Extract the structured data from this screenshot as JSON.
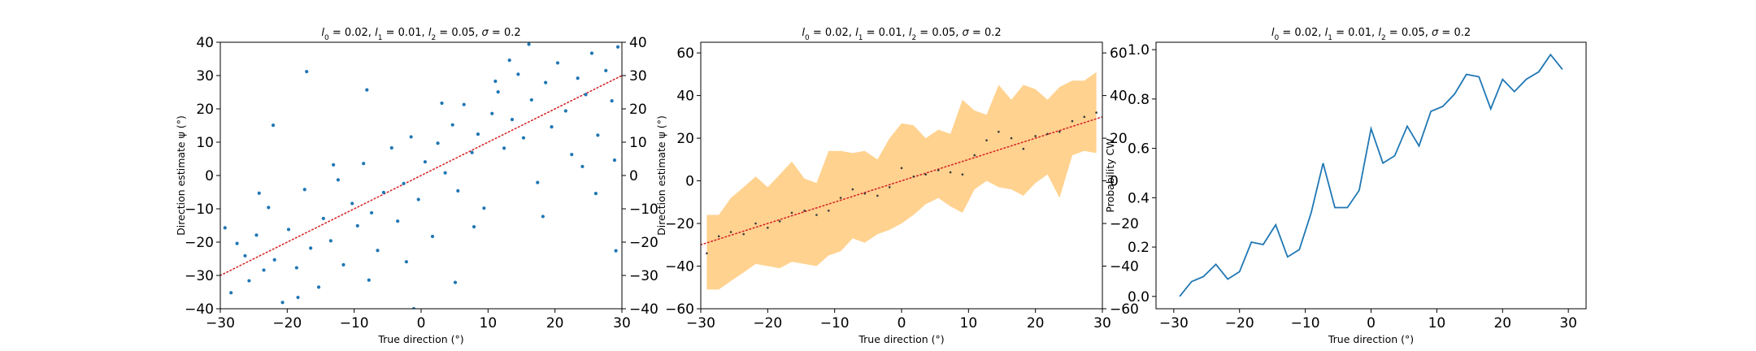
{
  "colors": {
    "scatter": "#1f77b4",
    "identity": "#d62728",
    "band": "#ffd28f",
    "mean_points": "#3a3a3a",
    "line": "#1f77b4"
  },
  "chart_data": [
    {
      "type": "scatter",
      "title": "l_0 = 0.02, l_1 = 0.01, l_2 = 0.05, σ = 0.2",
      "title_parts": {
        "l0": "0.02",
        "l1": "0.01",
        "l2": "0.05",
        "sigma": "0.2"
      },
      "xlabel": "True direction (°)",
      "ylabel": "Direction estimate ψ (°)",
      "xlim": [
        -30,
        30
      ],
      "ylim": [
        -40,
        40
      ],
      "x_ticks": [
        "−30",
        "−20",
        "−10",
        "0",
        "10",
        "20",
        "30"
      ],
      "y_ticks": [
        "−40",
        "−30",
        "−20",
        "−10",
        "0",
        "10",
        "20",
        "30",
        "40"
      ],
      "y_ticks_right": [
        "−40",
        "−30",
        "−20",
        "−10",
        "0",
        "10",
        "20",
        "30",
        "40"
      ],
      "identity_line": {
        "x": [
          -30,
          30
        ],
        "y": [
          -30,
          30
        ],
        "style": "dotted"
      },
      "points": [
        [
          -28.4,
          -35.2
        ],
        [
          -27.5,
          -20.4
        ],
        [
          -26.3,
          -24.1
        ],
        [
          -25.7,
          -31.6
        ],
        [
          -24.6,
          -17.9
        ],
        [
          -23.5,
          -28.4
        ],
        [
          -22.8,
          -9.6
        ],
        [
          -21.9,
          -25.3
        ],
        [
          -20.7,
          -38.1
        ],
        [
          -19.8,
          -16.2
        ],
        [
          -18.6,
          -27.7
        ],
        [
          -17.4,
          -4.2
        ],
        [
          -16.5,
          -21.8
        ],
        [
          -15.3,
          -33.5
        ],
        [
          -14.6,
          -12.9
        ],
        [
          -13.5,
          -19.6
        ],
        [
          -12.4,
          -1.3
        ],
        [
          -11.6,
          -26.8
        ],
        [
          -10.3,
          -8.4
        ],
        [
          -9.5,
          -15.1
        ],
        [
          -8.6,
          3.6
        ],
        [
          -7.4,
          -11.2
        ],
        [
          -6.5,
          -22.5
        ],
        [
          -5.6,
          -5.1
        ],
        [
          -4.4,
          8.3
        ],
        [
          -3.5,
          -13.7
        ],
        [
          -2.6,
          -2.4
        ],
        [
          -1.5,
          11.6
        ],
        [
          -0.4,
          -7.2
        ],
        [
          0.6,
          4.1
        ],
        [
          1.7,
          -18.3
        ],
        [
          2.5,
          9.7
        ],
        [
          3.6,
          0.8
        ],
        [
          4.7,
          15.2
        ],
        [
          5.5,
          -4.6
        ],
        [
          6.4,
          21.3
        ],
        [
          7.6,
          6.9
        ],
        [
          8.5,
          12.4
        ],
        [
          9.4,
          -9.8
        ],
        [
          10.6,
          18.6
        ],
        [
          11.5,
          25.1
        ],
        [
          12.4,
          8.2
        ],
        [
          13.6,
          16.8
        ],
        [
          14.5,
          30.4
        ],
        [
          15.3,
          11.3
        ],
        [
          16.5,
          22.7
        ],
        [
          17.4,
          -2.1
        ],
        [
          18.6,
          27.9
        ],
        [
          19.5,
          14.6
        ],
        [
          20.4,
          33.8
        ],
        [
          21.6,
          19.4
        ],
        [
          22.5,
          6.3
        ],
        [
          23.4,
          29.2
        ],
        [
          24.6,
          24.3
        ],
        [
          25.5,
          36.7
        ],
        [
          26.4,
          12.1
        ],
        [
          27.6,
          31.5
        ],
        [
          28.5,
          22.4
        ],
        [
          29.4,
          38.6
        ],
        [
          -29.3,
          -15.7
        ],
        [
          -24.2,
          -5.3
        ],
        [
          -18.4,
          -36.6
        ],
        [
          -13.1,
          3.2
        ],
        [
          -7.8,
          -31.4
        ],
        [
          -2.2,
          -25.9
        ],
        [
          3.1,
          21.7
        ],
        [
          7.9,
          -15.4
        ],
        [
          13.2,
          34.6
        ],
        [
          18.2,
          -12.3
        ],
        [
          24.1,
          2.7
        ],
        [
          29.1,
          -22.6
        ],
        [
          -22.1,
          15.1
        ],
        [
          -17.1,
          31.2
        ],
        [
          -8.1,
          25.7
        ],
        [
          -1.1,
          -40.0
        ],
        [
          5.1,
          -32.1
        ],
        [
          11.1,
          28.3
        ],
        [
          16.1,
          39.4
        ],
        [
          26.1,
          -5.4
        ],
        [
          28.9,
          4.6
        ]
      ]
    },
    {
      "type": "line",
      "title": "l_0 = 0.02, l_1 = 0.01, l_2 = 0.05, σ = 0.2",
      "title_parts": {
        "l0": "0.02",
        "l1": "0.01",
        "l2": "0.05",
        "sigma": "0.2"
      },
      "xlabel": "True direction (°)",
      "ylabel": "Direction estimate ψ (°)",
      "xlim": [
        -30,
        30
      ],
      "ylim": [
        -60,
        65
      ],
      "x_ticks": [
        "−30",
        "−20",
        "−10",
        "0",
        "10",
        "20",
        "30"
      ],
      "y_ticks": [
        "−60",
        "−40",
        "−20",
        "0",
        "20",
        "40",
        "60"
      ],
      "y_ticks_right": [
        "−60",
        "−40",
        "−20",
        "0",
        "20",
        "40",
        "60"
      ],
      "identity_line": {
        "x": [
          -30,
          30
        ],
        "y": [
          -30,
          30
        ],
        "style": "dotted"
      },
      "x": [
        -29.1,
        -27.3,
        -25.5,
        -23.6,
        -21.8,
        -20.0,
        -18.2,
        -16.4,
        -14.5,
        -12.7,
        -10.9,
        -9.1,
        -7.3,
        -5.5,
        -3.6,
        -1.8,
        0.0,
        1.8,
        3.6,
        5.5,
        7.3,
        9.1,
        10.9,
        12.7,
        14.5,
        16.4,
        18.2,
        20.0,
        21.8,
        23.6,
        25.5,
        27.3,
        29.1
      ],
      "mean": [
        -34,
        -26,
        -24,
        -25,
        -20,
        -22,
        -19,
        -15,
        -14,
        -16,
        -14,
        -8,
        -4,
        -6,
        -7,
        -3,
        6,
        2,
        3,
        5,
        4,
        3,
        12,
        19,
        23,
        20,
        15,
        21,
        22,
        23,
        28,
        30,
        32
      ],
      "upper": [
        -16,
        -16,
        -8,
        -3,
        2,
        -3,
        3,
        9,
        1,
        -1,
        14,
        14,
        13,
        14,
        10,
        20,
        27,
        26,
        20,
        24,
        22,
        38,
        33,
        31,
        45,
        38,
        45,
        43,
        38,
        44,
        47,
        47,
        51
      ],
      "lower": [
        -51,
        -51,
        -47,
        -43,
        -39,
        -40,
        -41,
        -38,
        -39,
        -40,
        -35,
        -33,
        -27,
        -29,
        -25,
        -23,
        -20,
        -16,
        -11,
        -8,
        -12,
        -15,
        -4,
        0,
        -3,
        -4,
        -7,
        -1,
        3,
        -8,
        12,
        14,
        13
      ]
    },
    {
      "type": "line",
      "title": "l_0 = 0.02, l_1 = 0.01, l_2 = 0.05, σ = 0.2",
      "title_parts": {
        "l0": "0.02",
        "l1": "0.01",
        "l2": "0.05",
        "sigma": "0.2"
      },
      "xlabel": "True direction (°)",
      "ylabel": "Probability CW",
      "xlim": [
        -32.7,
        32.7
      ],
      "ylim": [
        -0.05,
        1.03
      ],
      "x_ticks": [
        "−30",
        "−20",
        "−10",
        "0",
        "10",
        "20",
        "30"
      ],
      "y_ticks": [
        "0.0",
        "0.2",
        "0.4",
        "0.6",
        "0.8",
        "1.0"
      ],
      "x": [
        -29.1,
        -27.3,
        -25.5,
        -23.6,
        -21.8,
        -20.0,
        -18.2,
        -16.4,
        -14.5,
        -12.7,
        -10.9,
        -9.1,
        -7.3,
        -5.5,
        -3.6,
        -1.8,
        0.0,
        1.8,
        3.6,
        5.5,
        7.3,
        9.1,
        10.9,
        12.7,
        14.5,
        16.4,
        18.2,
        20.0,
        21.8,
        23.6,
        25.5,
        27.3,
        29.1
      ],
      "values": [
        0.0,
        0.06,
        0.08,
        0.13,
        0.07,
        0.1,
        0.22,
        0.21,
        0.29,
        0.16,
        0.19,
        0.34,
        0.54,
        0.36,
        0.36,
        0.43,
        0.68,
        0.54,
        0.57,
        0.69,
        0.61,
        0.75,
        0.77,
        0.82,
        0.9,
        0.89,
        0.76,
        0.88,
        0.83,
        0.88,
        0.91,
        0.98,
        0.92
      ]
    }
  ]
}
